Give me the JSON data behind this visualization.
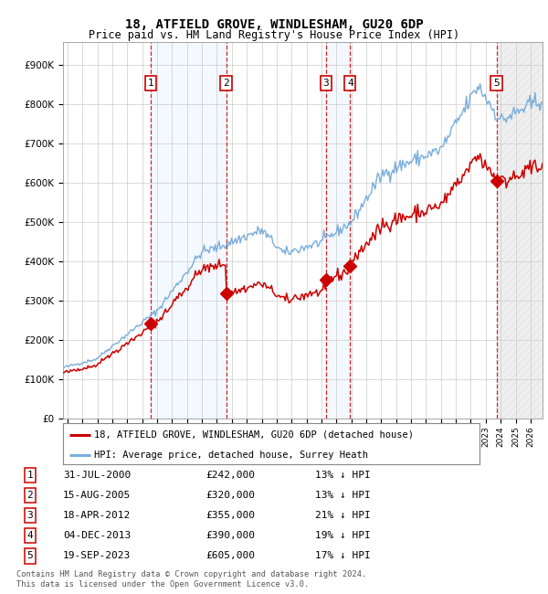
{
  "title": "18, ATFIELD GROVE, WINDLESHAM, GU20 6DP",
  "subtitle": "Price paid vs. HM Land Registry's House Price Index (HPI)",
  "ylabel_ticks": [
    "£0",
    "£100K",
    "£200K",
    "£300K",
    "£400K",
    "£500K",
    "£600K",
    "£700K",
    "£800K",
    "£900K"
  ],
  "ytick_vals": [
    0,
    100000,
    200000,
    300000,
    400000,
    500000,
    600000,
    700000,
    800000,
    900000
  ],
  "ylim": [
    0,
    960000
  ],
  "xlim_start": 1994.7,
  "xlim_end": 2026.8,
  "purchases": [
    {
      "label": "1",
      "year": 2000.58,
      "price": 242000,
      "date": "31-JUL-2000",
      "pct": "13%"
    },
    {
      "label": "2",
      "year": 2005.62,
      "price": 320000,
      "date": "15-AUG-2005",
      "pct": "13%"
    },
    {
      "label": "3",
      "year": 2012.3,
      "price": 355000,
      "date": "18-APR-2012",
      "pct": "21%"
    },
    {
      "label": "4",
      "year": 2013.92,
      "price": 390000,
      "date": "04-DEC-2013",
      "pct": "19%"
    },
    {
      "label": "5",
      "year": 2023.72,
      "price": 605000,
      "date": "19-SEP-2023",
      "pct": "17%"
    }
  ],
  "legend_entries": [
    {
      "label": "18, ATFIELD GROVE, WINDLESHAM, GU20 6DP (detached house)",
      "color": "#cc0000"
    },
    {
      "label": "HPI: Average price, detached house, Surrey Heath",
      "color": "#6699cc"
    }
  ],
  "table_rows": [
    {
      "num": "1",
      "date": "31-JUL-2000",
      "price": "£242,000",
      "pct": "13% ↓ HPI"
    },
    {
      "num": "2",
      "date": "15-AUG-2005",
      "price": "£320,000",
      "pct": "13% ↓ HPI"
    },
    {
      "num": "3",
      "date": "18-APR-2012",
      "price": "£355,000",
      "pct": "21% ↓ HPI"
    },
    {
      "num": "4",
      "date": "04-DEC-2013",
      "price": "£390,000",
      "pct": "19% ↓ HPI"
    },
    {
      "num": "5",
      "date": "19-SEP-2023",
      "price": "£605,000",
      "pct": "17% ↓ HPI"
    }
  ],
  "footer": [
    "Contains HM Land Registry data © Crown copyright and database right 2024.",
    "This data is licensed under the Open Government Licence v3.0."
  ],
  "background_color": "#ffffff",
  "grid_color": "#cccccc",
  "hpi_line_color": "#7aaddb",
  "price_line_color": "#cc0000",
  "shade_color": "#ddeeff"
}
